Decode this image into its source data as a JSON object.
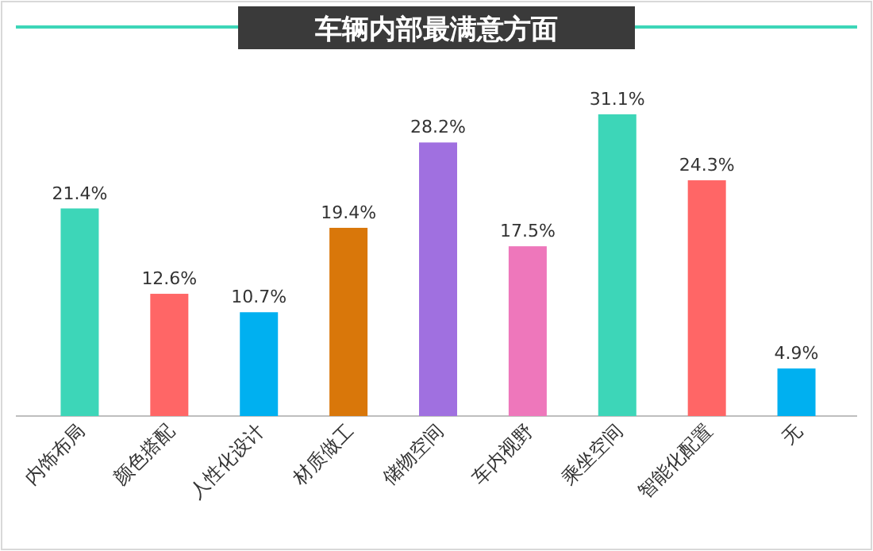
{
  "chart_data": {
    "type": "bar",
    "title": "车辆内部最满意方面",
    "categories": [
      "内饰布局",
      "颜色搭配",
      "人性化设计",
      "材质做工",
      "储物空间",
      "车内视野",
      "乘坐空间",
      "智能化配置",
      "无"
    ],
    "values": [
      21.4,
      12.6,
      10.7,
      19.4,
      28.2,
      17.5,
      31.1,
      24.3,
      4.9
    ],
    "colors": [
      "#3dd6b8",
      "#ff6666",
      "#00b0f0",
      "#d9770a",
      "#a070e0",
      "#ee77bb",
      "#3dd6b8",
      "#ff6666",
      "#00b0f0"
    ],
    "value_labels": [
      "21.4%",
      "12.6%",
      "10.7%",
      "19.4%",
      "28.2%",
      "17.5%",
      "31.1%",
      "24.3%",
      "4.9%"
    ]
  }
}
